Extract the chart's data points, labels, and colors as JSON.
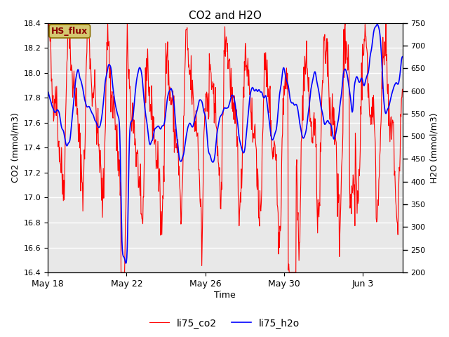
{
  "title": "CO2 and H2O",
  "xlabel": "Time",
  "ylabel_left": "CO2 (mmol/m3)",
  "ylabel_right": "H2O (mmol/m3)",
  "co2_ylim": [
    16.4,
    18.4
  ],
  "h2o_ylim": [
    200,
    750
  ],
  "co2_color": "#ff0000",
  "h2o_color": "#0000ff",
  "co2_label": "li75_co2",
  "h2o_label": "li75_h2o",
  "annotation_text": "HS_flux",
  "annotation_bg": "#d4c870",
  "annotation_border": "#8b7000",
  "plot_bg": "#e8e8e8",
  "fig_bg": "#ffffff",
  "grid_color": "#ffffff",
  "yticks_left": [
    16.4,
    16.6,
    16.8,
    17.0,
    17.2,
    17.4,
    17.6,
    17.8,
    18.0,
    18.2,
    18.4
  ],
  "yticks_right": [
    200,
    250,
    300,
    350,
    400,
    450,
    500,
    550,
    600,
    650,
    700,
    750
  ],
  "xtick_labels": [
    "May 18",
    "May 22",
    "May 26",
    "May 30",
    "Jun 3"
  ],
  "n_points": 800,
  "seed": 42
}
